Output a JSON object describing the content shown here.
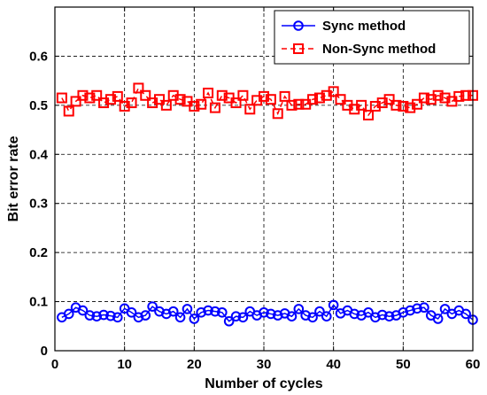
{
  "chart_data": {
    "type": "line",
    "title": "",
    "xlabel": "Number of cycles",
    "ylabel": "Bit error rate",
    "xlim": [
      0,
      60
    ],
    "ylim": [
      0,
      0.7
    ],
    "xticks": [
      "0",
      "10",
      "20",
      "30",
      "40",
      "50",
      "60"
    ],
    "yticks": [
      "0",
      "0.1",
      "0.2",
      "0.3",
      "0.4",
      "0.5",
      "0.6"
    ],
    "grid": true,
    "legend_position": "top-right",
    "x": [
      1,
      2,
      3,
      4,
      5,
      6,
      7,
      8,
      9,
      10,
      11,
      12,
      13,
      14,
      15,
      16,
      17,
      18,
      19,
      20,
      21,
      22,
      23,
      24,
      25,
      26,
      27,
      28,
      29,
      30,
      31,
      32,
      33,
      34,
      35,
      36,
      37,
      38,
      39,
      40,
      41,
      42,
      43,
      44,
      45,
      46,
      47,
      48,
      49,
      50,
      51,
      52,
      53,
      54,
      55,
      56,
      57,
      58,
      59,
      60
    ],
    "series": [
      {
        "name": "Sync method",
        "color": "#0000ff",
        "marker": "circle",
        "line_style": "solid",
        "values": [
          0.068,
          0.075,
          0.088,
          0.082,
          0.072,
          0.07,
          0.073,
          0.071,
          0.068,
          0.086,
          0.078,
          0.068,
          0.072,
          0.09,
          0.08,
          0.075,
          0.08,
          0.068,
          0.085,
          0.065,
          0.078,
          0.082,
          0.08,
          0.078,
          0.06,
          0.07,
          0.068,
          0.08,
          0.072,
          0.078,
          0.075,
          0.072,
          0.076,
          0.07,
          0.085,
          0.072,
          0.068,
          0.08,
          0.07,
          0.093,
          0.076,
          0.082,
          0.075,
          0.072,
          0.078,
          0.068,
          0.073,
          0.07,
          0.072,
          0.078,
          0.082,
          0.086,
          0.088,
          0.072,
          0.065,
          0.085,
          0.075,
          0.082,
          0.075,
          0.063
        ]
      },
      {
        "name": "Non-Sync method",
        "color": "#ff0000",
        "marker": "square",
        "line_style": "dashed",
        "values": [
          0.515,
          0.488,
          0.508,
          0.52,
          0.515,
          0.52,
          0.505,
          0.512,
          0.518,
          0.498,
          0.505,
          0.535,
          0.52,
          0.505,
          0.512,
          0.5,
          0.52,
          0.512,
          0.508,
          0.498,
          0.502,
          0.525,
          0.495,
          0.52,
          0.515,
          0.505,
          0.52,
          0.492,
          0.51,
          0.518,
          0.512,
          0.483,
          0.518,
          0.5,
          0.502,
          0.502,
          0.512,
          0.515,
          0.52,
          0.528,
          0.512,
          0.5,
          0.492,
          0.5,
          0.48,
          0.498,
          0.505,
          0.512,
          0.5,
          0.498,
          0.495,
          0.502,
          0.515,
          0.512,
          0.52,
          0.515,
          0.508,
          0.518,
          0.52,
          0.52
        ]
      }
    ]
  }
}
